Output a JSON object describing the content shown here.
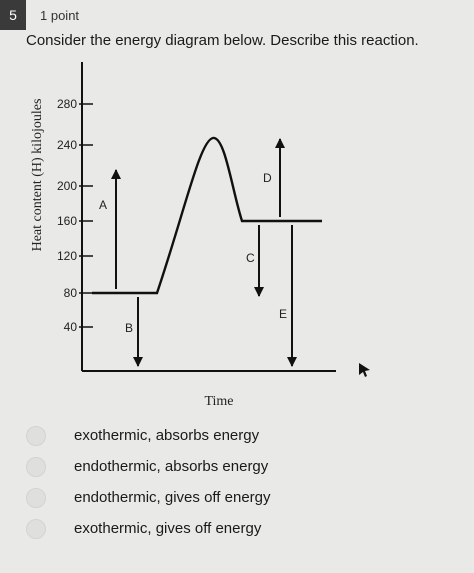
{
  "question": {
    "number": "5",
    "points": "1 point",
    "prompt": "Consider the energy diagram below. Describe this reaction."
  },
  "diagram": {
    "y_axis_label": "Heat content (H) kilojoules",
    "x_axis_label": "Time",
    "y_ticks": [
      "280",
      "240",
      "200",
      "160",
      "120",
      "80",
      "40"
    ],
    "arrow_labels": {
      "A": "A",
      "B": "B",
      "C": "C",
      "D": "D",
      "E": "E"
    }
  },
  "chart_data": {
    "type": "line",
    "title": "",
    "xlabel": "Time",
    "ylabel": "Heat content (H) kilojoules",
    "y_ticks": [
      40,
      80,
      120,
      160,
      200,
      240,
      280
    ],
    "energy_levels": {
      "reactants": 80,
      "activated_complex": 240,
      "products": 160
    },
    "arrows": [
      {
        "label": "A",
        "from": 80,
        "to": 240
      },
      {
        "label": "B",
        "from": 80,
        "to": 0
      },
      {
        "label": "C",
        "from": 160,
        "to": 80
      },
      {
        "label": "D",
        "from": 160,
        "to": 240
      },
      {
        "label": "E",
        "from": 160,
        "to": 0
      }
    ]
  },
  "options": [
    {
      "label": "exothermic, absorbs energy"
    },
    {
      "label": "endothermic, absorbs energy"
    },
    {
      "label": "endothermic, gives off energy"
    },
    {
      "label": "exothermic, gives off energy"
    }
  ]
}
